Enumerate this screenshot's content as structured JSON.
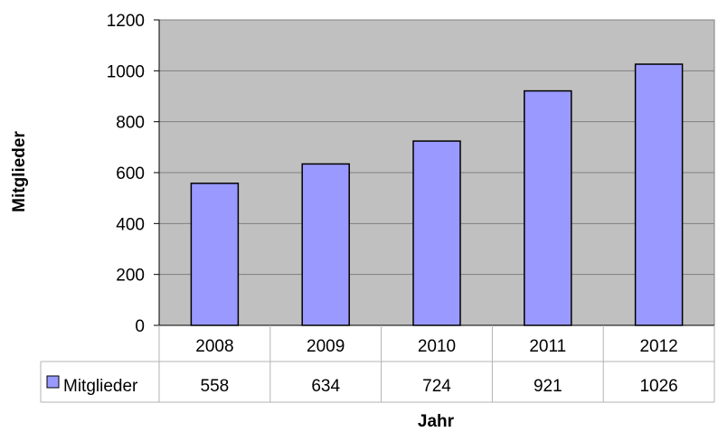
{
  "chart_data": {
    "type": "bar",
    "title": "",
    "xlabel": "Jahr",
    "ylabel": "Mitglieder",
    "categories": [
      "2008",
      "2009",
      "2010",
      "2011",
      "2012"
    ],
    "series": [
      {
        "name": "Mitglieder",
        "values": [
          558,
          634,
          724,
          921,
          1026
        ]
      }
    ],
    "data_table": {
      "legend_label": "Mitglieder",
      "values": [
        "558",
        "634",
        "724",
        "921",
        "1026"
      ]
    },
    "yticks": [
      "0",
      "200",
      "400",
      "600",
      "800",
      "1000",
      "1200"
    ],
    "ylim": [
      0,
      1200
    ],
    "grid": true,
    "legend": "data-table",
    "colors": {
      "bar": "#9999ff",
      "bar_stroke": "#000000",
      "plot_background": "#c0c0c0",
      "grid": "#808080",
      "table_line": "#b3b3b3"
    }
  }
}
